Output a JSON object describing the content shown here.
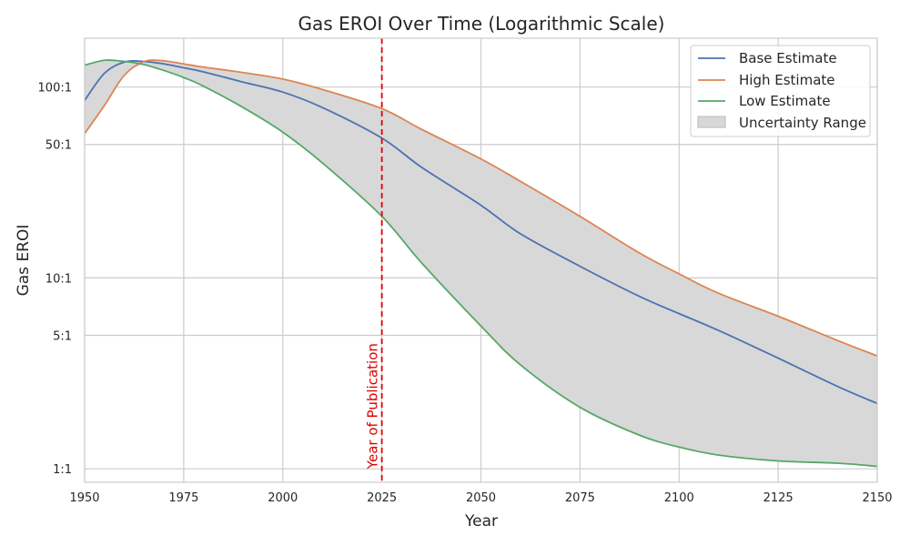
{
  "chart_data": {
    "type": "line",
    "title": "Gas EROI Over Time (Logarithmic Scale)",
    "xlabel": "Year",
    "ylabel": "Gas EROI",
    "xlim": [
      1950,
      2150
    ],
    "ylim": [
      0.85,
      180
    ],
    "yscale": "log",
    "grid": true,
    "legend_position": "top-right",
    "x_ticks": [
      1950,
      1975,
      2000,
      2025,
      2050,
      2075,
      2100,
      2125,
      2150
    ],
    "x_tick_labels": [
      "1950",
      "1975",
      "2000",
      "2025",
      "2050",
      "2075",
      "2100",
      "2125",
      "2150"
    ],
    "y_ticks": [
      1,
      5,
      10,
      50,
      100
    ],
    "y_tick_labels": [
      "1:1",
      "5:1",
      "10:1",
      "50:1",
      "100:1"
    ],
    "x": [
      1950,
      1955,
      1960,
      1965,
      1970,
      1975,
      1980,
      1990,
      2000,
      2010,
      2025,
      2035,
      2050,
      2060,
      2075,
      2090,
      2100,
      2110,
      2125,
      2140,
      2150
    ],
    "series": [
      {
        "name": "Base Estimate",
        "color": "#4c72b0",
        "values": [
          85,
          118,
          135,
          136,
          132,
          126,
          120,
          106,
          94,
          78,
          54,
          38,
          24,
          17,
          11.5,
          8,
          6.5,
          5.3,
          3.8,
          2.7,
          2.2
        ]
      },
      {
        "name": "High Estimate",
        "color": "#dd8452",
        "values": [
          57,
          80,
          115,
          136,
          137,
          132,
          127,
          119,
          110,
          97,
          77,
          60,
          42,
          32,
          21,
          13.5,
          10.5,
          8.3,
          6.3,
          4.7,
          3.9
        ]
      },
      {
        "name": "Low Estimate",
        "color": "#55a868",
        "values": [
          130,
          138,
          136,
          131,
          122,
          112,
          101,
          78,
          58,
          40,
          21,
          12,
          5.6,
          3.5,
          2.1,
          1.5,
          1.3,
          1.18,
          1.1,
          1.07,
          1.03
        ]
      }
    ],
    "fill_between": {
      "name": "Uncertainty Range",
      "color": "#d8d8d8",
      "edge_color": "#b8b8b8"
    },
    "annotations": [
      {
        "type": "vline",
        "x": 2025,
        "label": "Year of Publication",
        "color": "#e00000",
        "style": "dashed"
      }
    ]
  }
}
